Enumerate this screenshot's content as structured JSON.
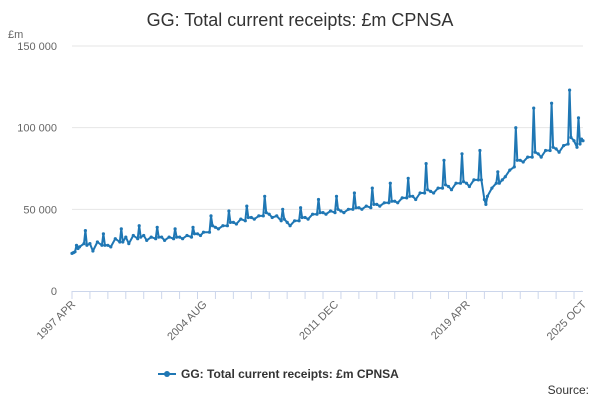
{
  "chart_data": {
    "type": "line",
    "title": "GG: Total current receipts: £m CPNSA",
    "y_unit": "£m",
    "ylim": [
      0,
      150000
    ],
    "y_ticks": [
      0,
      50000,
      100000,
      150000
    ],
    "y_tick_labels": [
      "0",
      "50 000",
      "100 000",
      "150 000"
    ],
    "x_range": [
      "1997 APR",
      "2025 OCT"
    ],
    "x_ticks": [
      "1997 APR",
      "2004 AUG",
      "2011 DEC",
      "2019 APR",
      "2025 OCT"
    ],
    "grid": "horizontal",
    "legend": "bottom",
    "marker": "circle",
    "series": [
      {
        "name": "GG: Total current receipts: £m CPNSA",
        "color": "#1f77b4",
        "points": [
          [
            "1997 APR",
            23000
          ],
          [
            "1997 MAY",
            23500
          ],
          [
            "1997 JUN",
            24000
          ],
          [
            "1997 JUL",
            28000
          ],
          [
            "1997 AUG",
            26000
          ],
          [
            "1997 SEP",
            27000
          ],
          [
            "1997 DEC",
            29000
          ],
          [
            "1998 JAN",
            37000
          ],
          [
            "1998 FEB",
            28000
          ],
          [
            "1998 APR",
            29000
          ],
          [
            "1998 JUN",
            24500
          ],
          [
            "1998 SEP",
            30000
          ],
          [
            "1998 DEC",
            28000
          ],
          [
            "1999 JAN",
            35000
          ],
          [
            "1999 FEB",
            28000
          ],
          [
            "1999 APR",
            28000
          ],
          [
            "1999 JUN",
            27000
          ],
          [
            "1999 SEP",
            32000
          ],
          [
            "1999 DEC",
            30000
          ],
          [
            "2000 JAN",
            38000
          ],
          [
            "2000 FEB",
            30000
          ],
          [
            "2000 APR",
            33000
          ],
          [
            "2000 JUN",
            29000
          ],
          [
            "2000 SEP",
            34000
          ],
          [
            "2000 DEC",
            32000
          ],
          [
            "2001 JAN",
            40000
          ],
          [
            "2001 FEB",
            33000
          ],
          [
            "2001 APR",
            34000
          ],
          [
            "2001 JUN",
            31000
          ],
          [
            "2001 SEP",
            33000
          ],
          [
            "2001 DEC",
            32000
          ],
          [
            "2002 JAN",
            39000
          ],
          [
            "2002 FEB",
            33000
          ],
          [
            "2002 APR",
            33000
          ],
          [
            "2002 JUN",
            31000
          ],
          [
            "2002 SEP",
            33000
          ],
          [
            "2002 DEC",
            32000
          ],
          [
            "2003 JAN",
            38000
          ],
          [
            "2003 FEB",
            33000
          ],
          [
            "2003 APR",
            33000
          ],
          [
            "2003 JUN",
            32000
          ],
          [
            "2003 SEP",
            34000
          ],
          [
            "2003 DEC",
            33000
          ],
          [
            "2004 JAN",
            39000
          ],
          [
            "2004 FEB",
            35000
          ],
          [
            "2004 APR",
            35000
          ],
          [
            "2004 JUN",
            34000
          ],
          [
            "2004 AUG",
            36000
          ],
          [
            "2004 DEC",
            36000
          ],
          [
            "2005 JAN",
            46000
          ],
          [
            "2005 FEB",
            40000
          ],
          [
            "2005 APR",
            39000
          ],
          [
            "2005 JUN",
            38000
          ],
          [
            "2005 SEP",
            40000
          ],
          [
            "2005 DEC",
            40000
          ],
          [
            "2006 JAN",
            49000
          ],
          [
            "2006 FEB",
            42000
          ],
          [
            "2006 APR",
            42000
          ],
          [
            "2006 JUN",
            41000
          ],
          [
            "2006 SEP",
            44000
          ],
          [
            "2006 DEC",
            43000
          ],
          [
            "2007 JAN",
            52000
          ],
          [
            "2007 FEB",
            45000
          ],
          [
            "2007 APR",
            45000
          ],
          [
            "2007 JUN",
            44000
          ],
          [
            "2007 SEP",
            46000
          ],
          [
            "2007 DEC",
            46000
          ],
          [
            "2008 JAN",
            58000
          ],
          [
            "2008 FEB",
            48000
          ],
          [
            "2008 APR",
            47000
          ],
          [
            "2008 JUN",
            45000
          ],
          [
            "2008 SEP",
            46000
          ],
          [
            "2008 DEC",
            43000
          ],
          [
            "2009 JAN",
            50000
          ],
          [
            "2009 FEB",
            44000
          ],
          [
            "2009 APR",
            42000
          ],
          [
            "2009 JUN",
            40000
          ],
          [
            "2009 SEP",
            43000
          ],
          [
            "2009 DEC",
            43000
          ],
          [
            "2010 JAN",
            51000
          ],
          [
            "2010 FEB",
            45000
          ],
          [
            "2010 APR",
            45000
          ],
          [
            "2010 JUN",
            44000
          ],
          [
            "2010 SEP",
            47000
          ],
          [
            "2010 DEC",
            47000
          ],
          [
            "2011 JAN",
            56000
          ],
          [
            "2011 FEB",
            48000
          ],
          [
            "2011 APR",
            48000
          ],
          [
            "2011 JUN",
            47000
          ],
          [
            "2011 SEP",
            49000
          ],
          [
            "2011 DEC",
            48000
          ],
          [
            "2012 JAN",
            58000
          ],
          [
            "2012 FEB",
            50000
          ],
          [
            "2012 APR",
            49000
          ],
          [
            "2012 JUN",
            48000
          ],
          [
            "2012 SEP",
            50000
          ],
          [
            "2012 DEC",
            50000
          ],
          [
            "2013 JAN",
            60000
          ],
          [
            "2013 FEB",
            51000
          ],
          [
            "2013 APR",
            51000
          ],
          [
            "2013 JUN",
            50000
          ],
          [
            "2013 SEP",
            52000
          ],
          [
            "2013 DEC",
            51000
          ],
          [
            "2014 JAN",
            63000
          ],
          [
            "2014 FEB",
            53000
          ],
          [
            "2014 APR",
            53000
          ],
          [
            "2014 JUN",
            52000
          ],
          [
            "2014 SEP",
            54000
          ],
          [
            "2014 DEC",
            54000
          ],
          [
            "2015 JAN",
            66000
          ],
          [
            "2015 FEB",
            55000
          ],
          [
            "2015 APR",
            55000
          ],
          [
            "2015 JUN",
            54000
          ],
          [
            "2015 SEP",
            57000
          ],
          [
            "2015 DEC",
            57000
          ],
          [
            "2016 JAN",
            69000
          ],
          [
            "2016 FEB",
            58000
          ],
          [
            "2016 APR",
            58000
          ],
          [
            "2016 JUN",
            56000
          ],
          [
            "2016 SEP",
            60000
          ],
          [
            "2016 DEC",
            60000
          ],
          [
            "2017 JAN",
            78000
          ],
          [
            "2017 FEB",
            62000
          ],
          [
            "2017 APR",
            61000
          ],
          [
            "2017 JUN",
            60000
          ],
          [
            "2017 SEP",
            63000
          ],
          [
            "2017 DEC",
            63000
          ],
          [
            "2018 JAN",
            80000
          ],
          [
            "2018 FEB",
            65000
          ],
          [
            "2018 APR",
            64000
          ],
          [
            "2018 JUN",
            62000
          ],
          [
            "2018 SEP",
            66000
          ],
          [
            "2018 DEC",
            66000
          ],
          [
            "2019 JAN",
            84000
          ],
          [
            "2019 FEB",
            67000
          ],
          [
            "2019 APR",
            66000
          ],
          [
            "2019 JUN",
            64000
          ],
          [
            "2019 SEP",
            68000
          ],
          [
            "2019 DEC",
            68000
          ],
          [
            "2020 JAN",
            86000
          ],
          [
            "2020 FEB",
            68000
          ],
          [
            "2020 APR",
            56000
          ],
          [
            "2020 MAY",
            53000
          ],
          [
            "2020 JUN",
            58000
          ],
          [
            "2020 SEP",
            63000
          ],
          [
            "2020 DEC",
            66000
          ],
          [
            "2021 JAN",
            73000
          ],
          [
            "2021 FEB",
            66000
          ],
          [
            "2021 APR",
            68000
          ],
          [
            "2021 JUN",
            70000
          ],
          [
            "2021 SEP",
            74000
          ],
          [
            "2021 DEC",
            76000
          ],
          [
            "2022 JAN",
            100000
          ],
          [
            "2022 FEB",
            80000
          ],
          [
            "2022 APR",
            80000
          ],
          [
            "2022 JUN",
            79000
          ],
          [
            "2022 SEP",
            82000
          ],
          [
            "2022 DEC",
            82000
          ],
          [
            "2023 JAN",
            112000
          ],
          [
            "2023 FEB",
            85000
          ],
          [
            "2023 APR",
            84000
          ],
          [
            "2023 JUN",
            82000
          ],
          [
            "2023 SEP",
            86000
          ],
          [
            "2023 DEC",
            86000
          ],
          [
            "2024 JAN",
            115000
          ],
          [
            "2024 FEB",
            88000
          ],
          [
            "2024 APR",
            87000
          ],
          [
            "2024 JUN",
            85000
          ],
          [
            "2024 SEP",
            89000
          ],
          [
            "2024 DEC",
            90000
          ],
          [
            "2025 JAN",
            123000
          ],
          [
            "2025 FEB",
            94000
          ],
          [
            "2025 APR",
            92000
          ],
          [
            "2025 JUN",
            88000
          ],
          [
            "2025 JUL",
            106000
          ],
          [
            "2025 AUG",
            90000
          ],
          [
            "2025 SEP",
            93000
          ],
          [
            "2025 OCT",
            92000
          ]
        ]
      }
    ]
  },
  "legend_label": "GG: Total current receipts: £m CPNSA",
  "source_label": "Source:"
}
